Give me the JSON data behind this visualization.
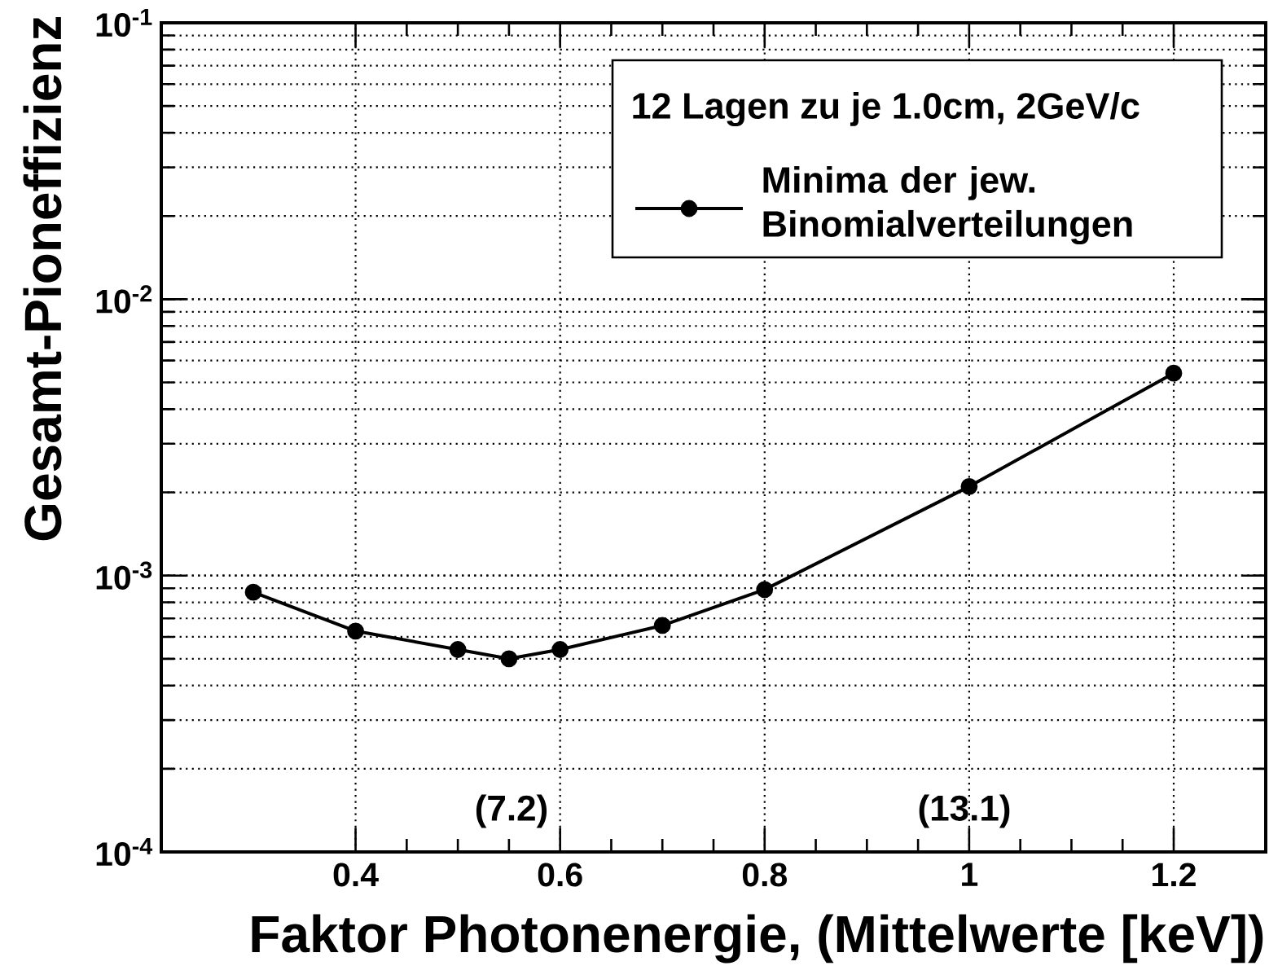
{
  "chart_data": {
    "type": "line",
    "xlabel": "Faktor Photonenergie, (Mittelwerte [keV])",
    "ylabel": "Gesamt-Pioneffizienz",
    "legend_title": "12 Lagen zu je 1.0cm, 2GeV/c",
    "x": [
      0.3,
      0.4,
      0.5,
      0.55,
      0.6,
      0.7,
      0.8,
      1.0,
      1.2
    ],
    "series": [
      {
        "name": "Minima der jew. Binomialverteilungen",
        "color": "#000000",
        "values": [
          0.00087,
          0.00063,
          0.00054,
          0.0005,
          0.00054,
          0.00066,
          0.00089,
          0.0021,
          0.0054
        ]
      }
    ],
    "xlim": [
      0.21,
      1.29
    ],
    "ylim": [
      0.0001,
      0.1
    ],
    "xticks": [
      0.4,
      0.6,
      0.8,
      1,
      1.2
    ],
    "yticks": [
      {
        "value": 0.0001,
        "label": "10$^{-4}$"
      },
      {
        "value": 0.001,
        "label": "10$^{-3}$"
      },
      {
        "value": 0.01,
        "label": "10$^{-2}$"
      },
      {
        "value": 0.1,
        "label": "10$^{-1}$"
      }
    ],
    "log": "y",
    "grid": true,
    "legend": "top right",
    "marker": "circle",
    "line_style": "solid",
    "annotations": [
      "(7.2)",
      "(13.1)"
    ]
  }
}
